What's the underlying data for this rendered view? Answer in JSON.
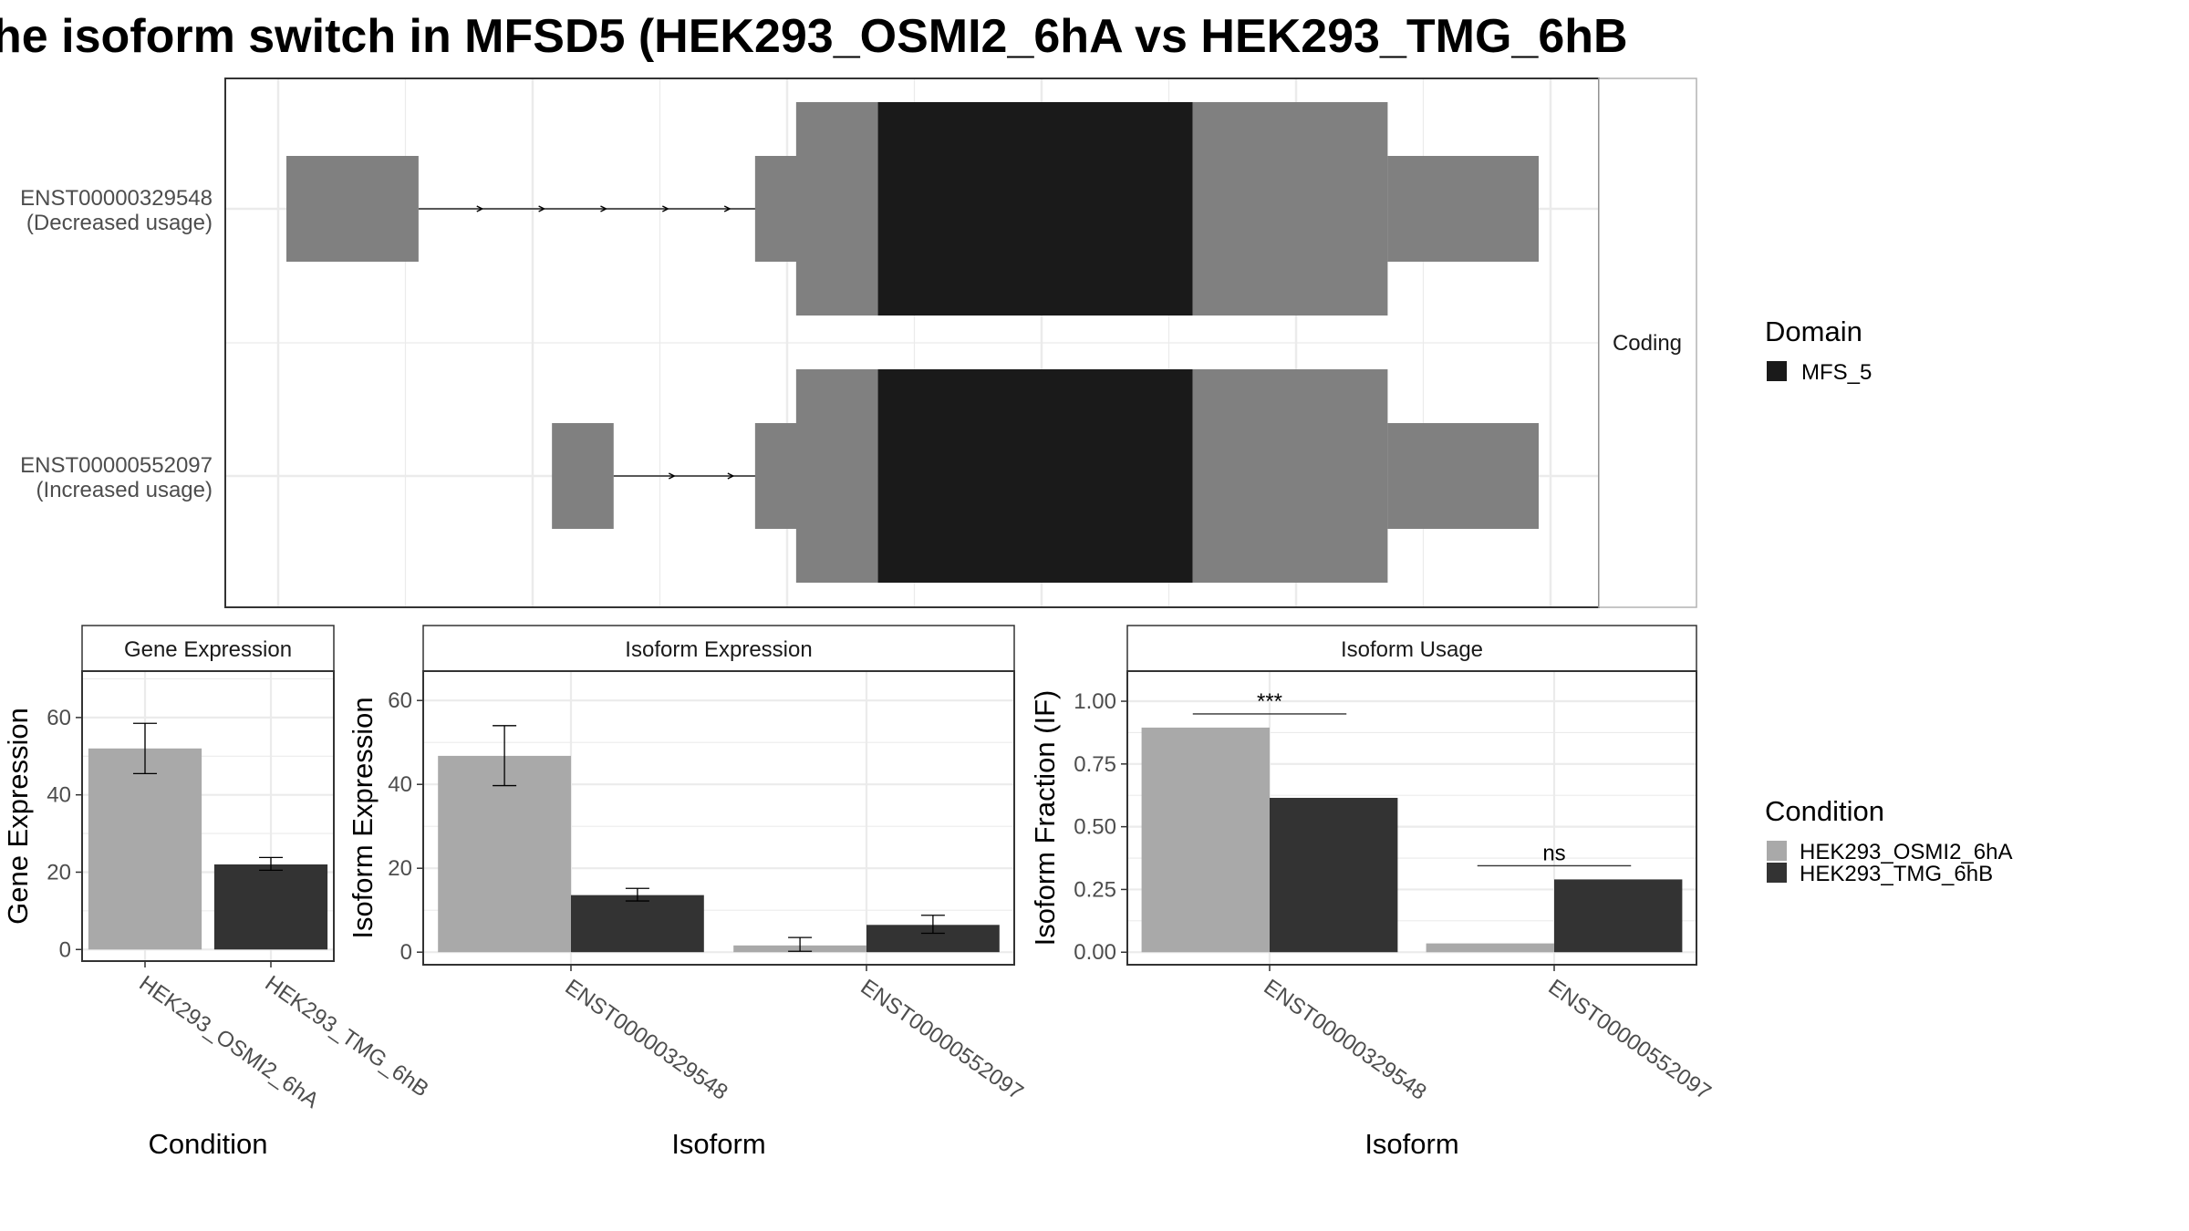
{
  "title": "he isoform switch in MFSD5 (HEK293_OSMI2_6hA vs HEK293_TMG_6hB",
  "colors": {
    "utr": "#808080",
    "domain": "#1a1a1a",
    "cond_a": "#a9a9a9",
    "cond_b": "#333333",
    "grid": "#ebebeb",
    "panel_border": "#333333",
    "strip_border": "#b3b3b3"
  },
  "chart_data": [
    {
      "type": "transcript-structure",
      "facet_label": "Coding",
      "transcripts": [
        {
          "id": "ENST00000329548",
          "usage": "(Decreased usage)",
          "exons": [
            [
              0.5,
              11.0
            ],
            [
              41.0,
              47.5
            ],
            [
              47.5,
              72.5
            ],
            [
              72.5,
              88.0
            ],
            [
              88.0,
              100.0
            ]
          ],
          "domain_exon": 2,
          "cds_exons": [
            1,
            3
          ]
        },
        {
          "id": "ENST00000552097",
          "usage": "(Increased usage)",
          "exons": [
            [
              21.6,
              26.5
            ],
            [
              41.0,
              47.5
            ],
            [
              47.5,
              72.5
            ],
            [
              72.5,
              88.0
            ],
            [
              88.0,
              100.0
            ]
          ],
          "domain_exon": 2,
          "cds_exons": [
            1,
            3
          ]
        }
      ],
      "legend": {
        "title": "Domain",
        "items": [
          "MFS_5"
        ]
      }
    },
    {
      "type": "bar",
      "strip": "Gene Expression",
      "ylabel": "Gene Expression",
      "xlabel": "Condition",
      "ylim": [
        -3,
        72
      ],
      "yticks": [
        "0",
        "20",
        "40",
        "60"
      ],
      "categories": [
        "HEK293_OSMI2_6hA",
        "HEK293_TMG_6hB"
      ],
      "values": [
        52,
        22
      ],
      "errors": [
        [
          45.5,
          58.5
        ],
        [
          20.5,
          23.8
        ]
      ]
    },
    {
      "type": "bar",
      "strip": "Isoform Expression",
      "ylabel": "Isoform Expression",
      "xlabel": "Isoform",
      "ylim": [
        -3,
        67
      ],
      "yticks": [
        "0",
        "20",
        "40",
        "60"
      ],
      "categories": [
        "ENST00000329548",
        "ENST00000552097"
      ],
      "series": [
        {
          "name": "HEK293_OSMI2_6hA",
          "values": [
            46.8,
            1.6
          ],
          "errors": [
            [
              39.7,
              54
            ],
            [
              0.2,
              3.5
            ]
          ]
        },
        {
          "name": "HEK293_TMG_6hB",
          "values": [
            13.6,
            6.5
          ],
          "errors": [
            [
              12.2,
              15.2
            ],
            [
              4.5,
              8.8
            ]
          ]
        }
      ]
    },
    {
      "type": "bar",
      "strip": "Isoform Usage",
      "ylabel": "Isoform Fraction (IF)",
      "xlabel": "Isoform",
      "ylim": [
        -0.05,
        1.12
      ],
      "yticks": [
        "0.00",
        "0.25",
        "0.50",
        "0.75",
        "1.00"
      ],
      "categories": [
        "ENST00000329548",
        "ENST00000552097"
      ],
      "series": [
        {
          "name": "HEK293_OSMI2_6hA",
          "values": [
            0.895,
            0.035
          ]
        },
        {
          "name": "HEK293_TMG_6hB",
          "values": [
            0.615,
            0.29
          ]
        }
      ],
      "significance": [
        "***",
        "ns"
      ]
    }
  ],
  "legend_condition": {
    "title": "Condition",
    "items": [
      "HEK293_OSMI2_6hA",
      "HEK293_TMG_6hB"
    ]
  }
}
